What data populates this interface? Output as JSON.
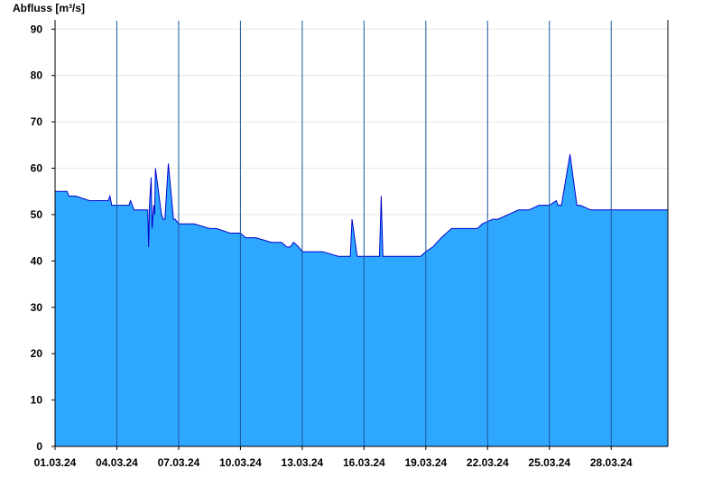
{
  "chart_data": {
    "type": "area",
    "ylabel": "Abfluss [m³/s]",
    "ylim": [
      0,
      92
    ],
    "yticks": [
      0,
      10,
      20,
      30,
      40,
      50,
      60,
      70,
      80,
      90
    ],
    "xlim": [
      "01.03.24 00:00",
      "30.03.24 18:00"
    ],
    "xtick_labels": [
      "01.03.24",
      "04.03.24",
      "07.03.24",
      "10.03.24",
      "13.03.24",
      "16.03.24",
      "19.03.24",
      "22.03.24",
      "25.03.24",
      "28.03.24"
    ],
    "xtick_dates": [
      "01.03.24",
      "04.03.24",
      "07.03.24",
      "10.03.24",
      "13.03.24",
      "16.03.24",
      "19.03.24",
      "22.03.24",
      "25.03.24",
      "28.03.24"
    ],
    "grid": {
      "horizontal": true,
      "vertical_at_ticks": true
    },
    "colors": {
      "fill": "#2ea8ff",
      "line": "#0000cc",
      "gridline": "#1a55a0",
      "hgrid": "#e6e6e6"
    },
    "series": [
      {
        "x": [
          "01.03.24 00:00",
          "01.03.24 14:00",
          "01.03.24 16:00",
          "01.03.24 20:00",
          "02.03.24 00:00",
          "02.03.24 16:00",
          "03.03.24 14:00",
          "03.03.24 16:00",
          "03.03.24 18:00",
          "04.03.24 08:00",
          "04.03.24 14:00",
          "04.03.24 16:00",
          "04.03.24 20:00",
          "05.03.24 12:00",
          "05.03.24 13:00",
          "05.03.24 14:00",
          "05.03.24 16:00",
          "05.03.24 17:00",
          "05.03.24 19:00",
          "05.03.24 20:00",
          "05.03.24 21:00",
          "06.03.24 04:00",
          "06.03.24 06:00",
          "06.03.24 08:00",
          "06.03.24 12:00",
          "06.03.24 18:00",
          "06.03.24 20:00",
          "07.03.24 00:00",
          "07.03.24 18:00",
          "08.03.24 12:00",
          "08.03.24 16:00",
          "08.03.24 20:00",
          "09.03.24 12:00",
          "10.03.24 00:00",
          "10.03.24 06:00",
          "10.03.24 12:00",
          "10.03.24 18:00",
          "11.03.24 12:00",
          "12.03.24 00:00",
          "12.03.24 06:00",
          "12.03.24 10:00",
          "12.03.24 14:00",
          "12.03.24 20:00",
          "13.03.24 00:00",
          "13.03.24 06:00",
          "13.03.24 12:00",
          "14.03.24 00:00",
          "14.03.24 18:00",
          "15.03.24 06:00",
          "15.03.24 08:00",
          "15.03.24 10:00",
          "15.03.24 16:00",
          "16.03.24 18:00",
          "16.03.24 20:00",
          "16.03.24 22:00",
          "17.03.24 06:00",
          "17.03.24 18:00",
          "18.03.24 12:00",
          "18.03.24 18:00",
          "19.03.24 00:00",
          "19.03.24 08:00",
          "19.03.24 18:00",
          "20.03.24 06:00",
          "21.03.24 00:00",
          "21.03.24 12:00",
          "21.03.24 18:00",
          "22.03.24 06:00",
          "22.03.24 12:00",
          "23.03.24 00:00",
          "23.03.24 12:00",
          "24.03.24 00:00",
          "24.03.24 12:00",
          "25.03.24 00:00",
          "25.03.24 08:00",
          "25.03.24 10:00",
          "25.03.24 14:00",
          "26.03.24 00:00",
          "26.03.24 08:00",
          "26.03.24 12:00",
          "27.03.24 00:00",
          "27.03.24 12:00",
          "28.03.24 00:00",
          "28.03.24 12:00",
          "29.03.24 00:00",
          "30.03.24 00:00",
          "30.03.24 18:00"
        ],
        "y": [
          55,
          55,
          54,
          54,
          54,
          53,
          53,
          54,
          52,
          52,
          52,
          53,
          51,
          51,
          43,
          52,
          58,
          47,
          52,
          50,
          60,
          50,
          49,
          49,
          61,
          49,
          49,
          48,
          48,
          47,
          47,
          47,
          46,
          46,
          45,
          45,
          45,
          44,
          44,
          43,
          43,
          44,
          43,
          42,
          42,
          42,
          42,
          41,
          41,
          41,
          49,
          41,
          41,
          54,
          41,
          41,
          41,
          41,
          41,
          42,
          43,
          45,
          47,
          47,
          47,
          48,
          49,
          49,
          50,
          51,
          51,
          52,
          52,
          53,
          52,
          52,
          63,
          52,
          52,
          51,
          51,
          51,
          51,
          51,
          51,
          51
        ]
      }
    ]
  }
}
